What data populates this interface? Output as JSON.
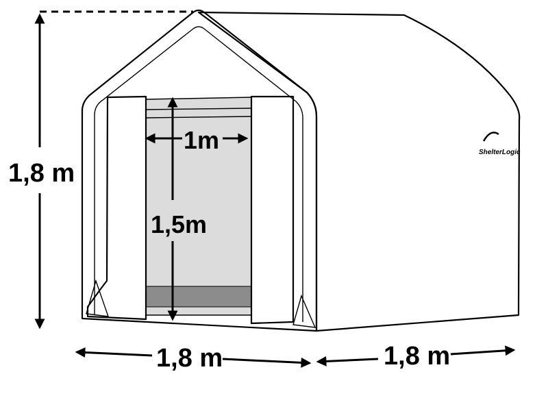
{
  "diagram": {
    "labels": {
      "height_total": "1,8 m",
      "door_width": "1m",
      "door_height": "1,5m",
      "front_width": "1,8 m",
      "side_depth": "1,8 m"
    },
    "brand": {
      "text": "ShelterLogic"
    },
    "colors": {
      "panel": "#f4f4f4",
      "door_opening": "#dcdcdc",
      "door_sill": "#8c8c8c",
      "line": "#000000"
    }
  }
}
